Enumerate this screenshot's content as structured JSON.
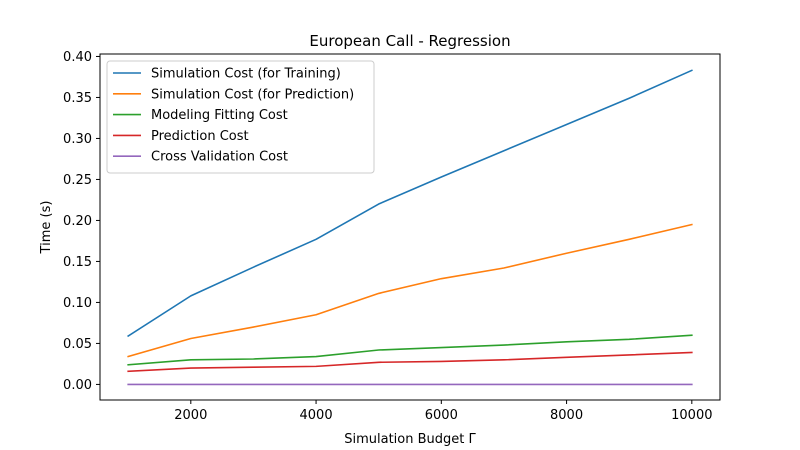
{
  "chart_data": {
    "type": "line",
    "title": "European Call - Regression",
    "xlabel": "Simulation Budget Γ",
    "ylabel": "Time (s)",
    "xlim": [
      550,
      10450
    ],
    "ylim": [
      -0.019,
      0.403
    ],
    "xticks": [
      2000,
      4000,
      6000,
      8000,
      10000
    ],
    "yticks": [
      0.0,
      0.05,
      0.1,
      0.15,
      0.2,
      0.25,
      0.3,
      0.35,
      0.4
    ],
    "ytick_labels": [
      "0.00",
      "0.05",
      "0.10",
      "0.15",
      "0.20",
      "0.25",
      "0.30",
      "0.35",
      "0.40"
    ],
    "grid": false,
    "legend_position": "upper-left",
    "x": [
      1000,
      2000,
      3000,
      4000,
      5000,
      6000,
      7000,
      8000,
      9000,
      10000
    ],
    "series": [
      {
        "name": "Simulation Cost (for Training)",
        "color": "#1f77b4",
        "values": [
          0.059,
          0.108,
          0.143,
          0.177,
          0.22,
          0.253,
          0.285,
          0.317,
          0.349,
          0.383
        ]
      },
      {
        "name": "Simulation Cost (for Prediction)",
        "color": "#ff7f0e",
        "values": [
          0.034,
          0.056,
          0.07,
          0.085,
          0.111,
          0.129,
          0.142,
          0.16,
          0.177,
          0.195
        ]
      },
      {
        "name": "Modeling Fitting Cost",
        "color": "#2ca02c",
        "values": [
          0.024,
          0.03,
          0.031,
          0.034,
          0.042,
          0.045,
          0.048,
          0.052,
          0.055,
          0.06
        ]
      },
      {
        "name": "Prediction Cost",
        "color": "#d62728",
        "values": [
          0.016,
          0.02,
          0.021,
          0.022,
          0.027,
          0.028,
          0.03,
          0.033,
          0.036,
          0.039
        ]
      },
      {
        "name": "Cross Validation Cost",
        "color": "#9467bd",
        "values": [
          0.0,
          0.0,
          0.0,
          0.0,
          0.0,
          0.0,
          0.0,
          0.0,
          0.0,
          0.0
        ]
      }
    ]
  }
}
